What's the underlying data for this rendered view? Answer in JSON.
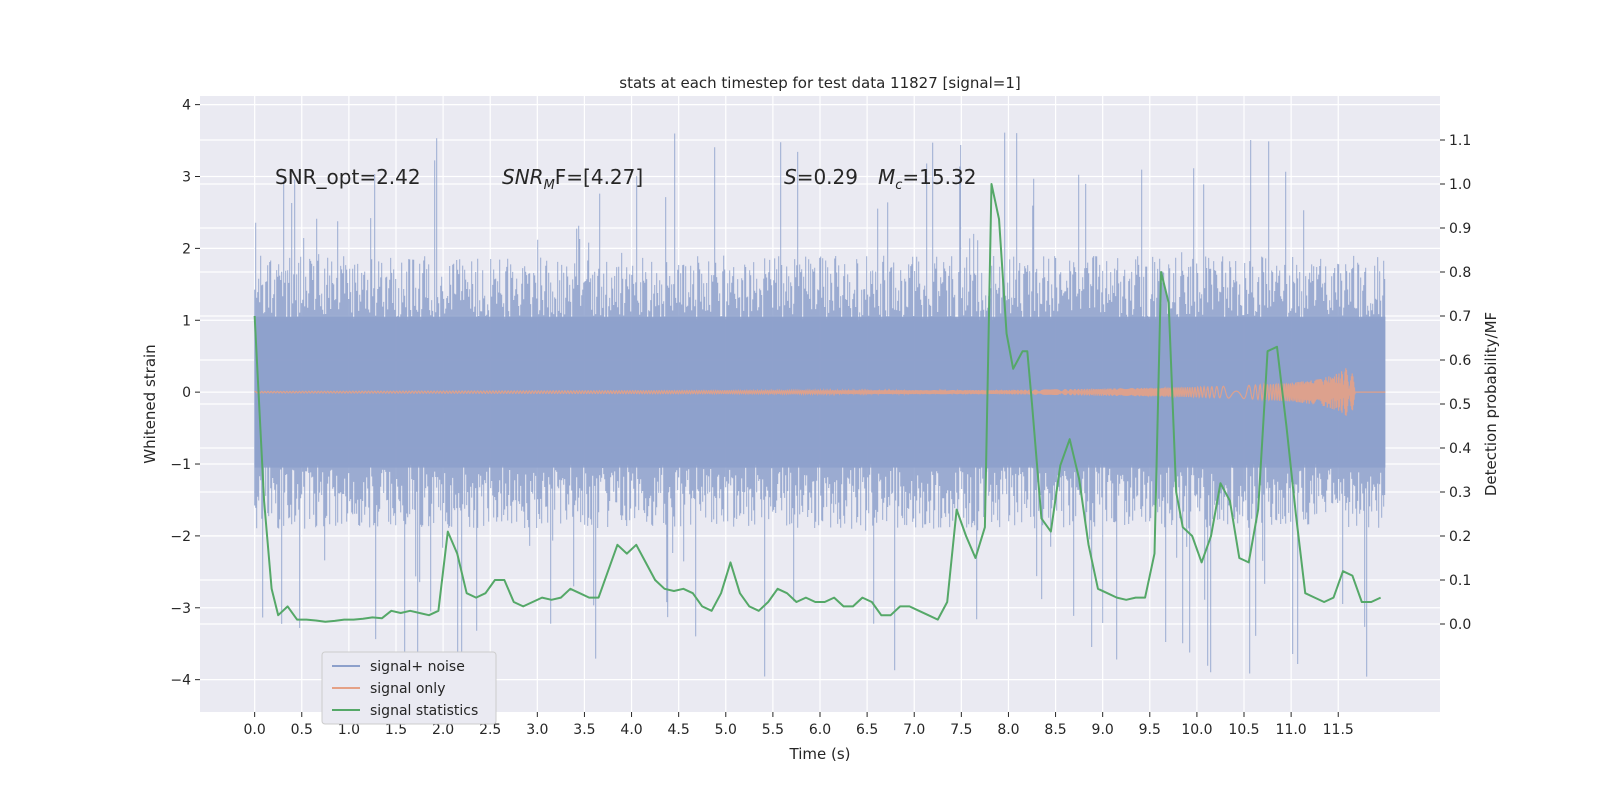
{
  "chart_data": {
    "type": "line",
    "title": "stats at each timestep for test data 11827 [signal=1]",
    "xlabel": "Time (s)",
    "ylabel": "Whitened strain",
    "y2label": "Detection probability/MF",
    "xlim": [
      -0.58,
      12.58
    ],
    "ylim": [
      -4.45,
      4.12
    ],
    "y2lim": [
      -0.2,
      1.2
    ],
    "x_ticks": [
      0.0,
      0.5,
      1.0,
      1.5,
      2.0,
      2.5,
      3.0,
      3.5,
      4.0,
      4.5,
      5.0,
      5.5,
      6.0,
      6.5,
      7.0,
      7.5,
      8.0,
      8.5,
      9.0,
      9.5,
      10.0,
      10.5,
      11.0,
      11.5
    ],
    "x_tick_labels": [
      "0.0",
      "0.5",
      "1.0",
      "1.5",
      "2.0",
      "2.5",
      "3.0",
      "3.5",
      "4.0",
      "4.5",
      "5.0",
      "5.5",
      "6.0",
      "6.5",
      "7.0",
      "7.5",
      "8.0",
      "8.5",
      "9.0",
      "9.5",
      "10.0",
      "10.5",
      "11.0",
      "11.5"
    ],
    "y_ticks": [
      4,
      3,
      2,
      1,
      0,
      -1,
      -2,
      -3,
      -4
    ],
    "y_tick_labels": [
      "4",
      "3",
      "2",
      "1",
      "0",
      "−1",
      "−2",
      "−3",
      "−4"
    ],
    "y2_ticks": [
      1.1,
      1.0,
      0.9,
      0.8,
      0.7,
      0.6,
      0.5,
      0.4,
      0.3,
      0.2,
      0.1,
      0.0
    ],
    "y2_tick_labels": [
      "1.1",
      "1.0",
      "0.9",
      "0.8",
      "0.7",
      "0.6",
      "0.5",
      "0.4",
      "0.3",
      "0.2",
      "0.1",
      "0.0"
    ],
    "grid": true,
    "legend_position": "lower-left",
    "annotations": {
      "snr_opt": "SNR_opt=2.42",
      "snr_mf_base": "SNR",
      "snr_mf_sub": "M",
      "snr_mf_rest": "F=[4.27]",
      "s_var": "S",
      "s_val": "=0.29",
      "mc_base": "M",
      "mc_sub": "c",
      "mc_val": "=15.32"
    },
    "series": [
      {
        "name": "signal+ noise",
        "color": "#8da0cb",
        "axis": "left",
        "style": "noise-band",
        "x_range": [
          0.0,
          12.0
        ],
        "typical_min": -1.9,
        "typical_max": 1.9,
        "extreme_min": -4.1,
        "extreme_max": 3.65
      },
      {
        "name": "signal only",
        "color": "#e5a186",
        "axis": "left",
        "style": "chirp",
        "x_range": [
          0.0,
          11.68
        ],
        "envelope_x": [
          0.0,
          8.0,
          9.0,
          10.0,
          10.5,
          11.0,
          11.3,
          11.5,
          11.6,
          11.65,
          11.68
        ],
        "envelope_y": [
          0.01,
          0.03,
          0.05,
          0.07,
          0.09,
          0.13,
          0.18,
          0.26,
          0.35,
          0.45,
          0.0
        ]
      },
      {
        "name": "signal statistics",
        "color": "#55a868",
        "axis": "right",
        "style": "line",
        "x": [
          0.0,
          0.1,
          0.18,
          0.25,
          0.35,
          0.45,
          0.55,
          0.65,
          0.75,
          0.85,
          0.95,
          1.05,
          1.15,
          1.25,
          1.35,
          1.45,
          1.55,
          1.65,
          1.75,
          1.85,
          1.95,
          2.05,
          2.15,
          2.25,
          2.35,
          2.45,
          2.55,
          2.65,
          2.75,
          2.85,
          2.95,
          3.05,
          3.15,
          3.25,
          3.35,
          3.45,
          3.55,
          3.65,
          3.75,
          3.85,
          3.95,
          4.05,
          4.15,
          4.25,
          4.35,
          4.45,
          4.55,
          4.65,
          4.75,
          4.85,
          4.95,
          5.05,
          5.15,
          5.25,
          5.35,
          5.45,
          5.55,
          5.65,
          5.75,
          5.85,
          5.95,
          6.05,
          6.15,
          6.25,
          6.35,
          6.45,
          6.55,
          6.65,
          6.75,
          6.85,
          6.95,
          7.05,
          7.15,
          7.25,
          7.35,
          7.45,
          7.55,
          7.65,
          7.75,
          7.82,
          7.9,
          7.98,
          8.05,
          8.1,
          8.15,
          8.2,
          8.25,
          8.35,
          8.45,
          8.55,
          8.65,
          8.75,
          8.85,
          8.95,
          9.05,
          9.15,
          9.25,
          9.35,
          9.45,
          9.55,
          9.62,
          9.7,
          9.78,
          9.85,
          9.95,
          10.05,
          10.15,
          10.25,
          10.35,
          10.45,
          10.55,
          10.65,
          10.75,
          10.85,
          10.95,
          11.05,
          11.15,
          11.25,
          11.35,
          11.45,
          11.55,
          11.65,
          11.75,
          11.85,
          11.95
        ],
        "y": [
          0.7,
          0.28,
          0.08,
          0.02,
          0.04,
          0.01,
          0.01,
          0.008,
          0.005,
          0.007,
          0.01,
          0.01,
          0.012,
          0.015,
          0.013,
          0.03,
          0.025,
          0.03,
          0.025,
          0.02,
          0.03,
          0.21,
          0.16,
          0.07,
          0.06,
          0.07,
          0.1,
          0.1,
          0.05,
          0.04,
          0.05,
          0.06,
          0.055,
          0.06,
          0.08,
          0.07,
          0.06,
          0.06,
          0.12,
          0.18,
          0.16,
          0.18,
          0.14,
          0.1,
          0.08,
          0.075,
          0.08,
          0.07,
          0.04,
          0.03,
          0.07,
          0.14,
          0.07,
          0.04,
          0.03,
          0.05,
          0.08,
          0.07,
          0.05,
          0.06,
          0.05,
          0.05,
          0.06,
          0.04,
          0.04,
          0.06,
          0.05,
          0.02,
          0.02,
          0.04,
          0.04,
          0.03,
          0.02,
          0.01,
          0.05,
          0.26,
          0.2,
          0.15,
          0.22,
          1.0,
          0.92,
          0.66,
          0.58,
          0.6,
          0.62,
          0.62,
          0.5,
          0.24,
          0.21,
          0.36,
          0.42,
          0.33,
          0.18,
          0.08,
          0.07,
          0.06,
          0.055,
          0.06,
          0.06,
          0.16,
          0.8,
          0.73,
          0.3,
          0.22,
          0.2,
          0.14,
          0.2,
          0.32,
          0.28,
          0.15,
          0.14,
          0.26,
          0.62,
          0.63,
          0.45,
          0.25,
          0.07,
          0.06,
          0.05,
          0.06,
          0.12,
          0.11,
          0.05,
          0.05,
          0.06
        ]
      }
    ]
  }
}
